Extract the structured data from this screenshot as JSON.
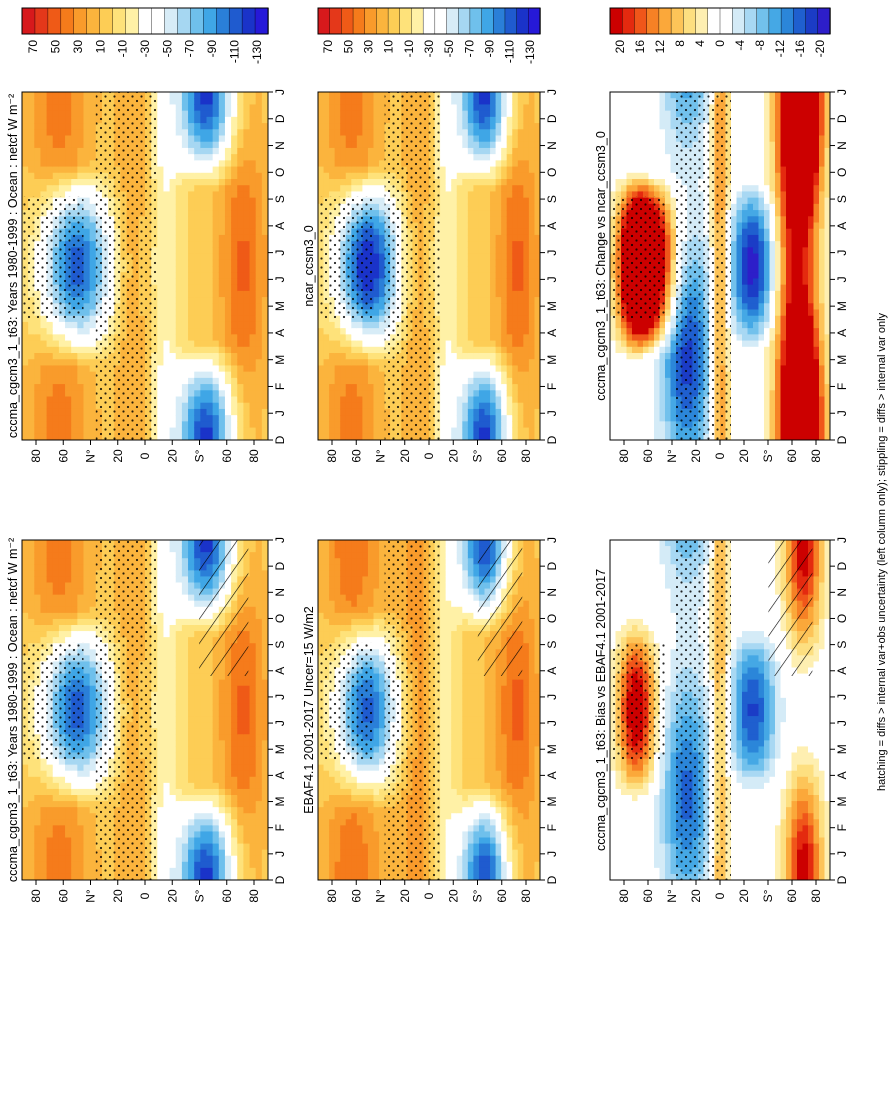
{
  "figure": {
    "footnote": "hatching = diffs > internal var+obs uncertainty (left column only); stippling = diffs > internal var only",
    "month_labels": [
      "D",
      "J",
      "F",
      "M",
      "A",
      "M",
      "J",
      "J",
      "A",
      "S",
      "O",
      "N",
      "D",
      "J"
    ],
    "lat_labels": [
      "80",
      "60",
      "N°",
      "20",
      "0",
      "20",
      "S°",
      "60",
      "80"
    ],
    "colors": {
      "abs_scale": [
        "#d7191c",
        "#e4381a",
        "#ef5a17",
        "#f57b1b",
        "#f99b2b",
        "#fbb43d",
        "#fdcd55",
        "#fee27a",
        "#fff1a6",
        "#ffffff",
        "#ffffff",
        "#d7ecf7",
        "#a6d7f2",
        "#6fc0ec",
        "#3fa6e6",
        "#2a7fd8",
        "#1f5bcf",
        "#1a33c9",
        "#2619d8"
      ],
      "diff_scale": [
        "#cc0000",
        "#e42a0f",
        "#f0561a",
        "#f68125",
        "#fba83a",
        "#fdc458",
        "#fddf80",
        "#feefb1",
        "#ffffff",
        "#ffffff",
        "#d4ebf7",
        "#a8d8f3",
        "#72c1ec",
        "#45a8e5",
        "#2b86d9",
        "#1f5fcf",
        "#1b3cc6",
        "#2d1ec9"
      ]
    }
  },
  "panels": [
    {
      "title": "cccma_cgcm3_1_t63: Years 1980-1999 : Ocean : netcf W m⁻²",
      "scale": "abs",
      "hatch": true
    },
    {
      "title": "cccma_cgcm3_1_t63: Years 1980-1999 : Ocean : netcf W m⁻²",
      "scale": "abs",
      "hatch": false
    },
    {
      "title": "EBAF4.1 2001-2017 Uncer=15 W/m2",
      "scale": "abs",
      "hatch": true
    },
    {
      "title": "ncar_ccsm3_0",
      "scale": "abs",
      "hatch": false
    },
    {
      "title": "cccma_cgcm3_1_t63: Bias vs EBAF4.1 2001-2017",
      "scale": "diff",
      "hatch": true
    },
    {
      "title": "cccma_cgcm3_1_t63: Change vs ncar_ccsm3_0",
      "scale": "diff",
      "hatch": false
    }
  ],
  "colorbars": {
    "abs_ticks": [
      "70",
      "50",
      "30",
      "10",
      "-10",
      "-30",
      "-50",
      "-70",
      "-90",
      "-110",
      "-130"
    ],
    "diff_ticks": [
      "20",
      "16",
      "12",
      "8",
      "4",
      "0",
      "-4",
      "-8",
      "-12",
      "-16",
      "-20"
    ]
  },
  "chart_data": [
    {
      "type": "heatmap",
      "title": "cccma_cgcm3_1_t63: Years 1980-1999 : Ocean : netcf W m⁻²",
      "x": [
        "D",
        "J",
        "F",
        "M",
        "A",
        "M",
        "J",
        "J",
        "A",
        "S",
        "O",
        "N",
        "D",
        "J"
      ],
      "y": [
        "80",
        "60",
        "N",
        "20",
        "0",
        "20",
        "S",
        "60",
        "80"
      ],
      "value_range": [
        -130,
        70
      ],
      "note": "zonal-mean net cloud forcing over ocean; negative (blue) in mid-latitude summer hemispheres, positive (orange) near 60 deg and tropics"
    },
    {
      "type": "heatmap",
      "title": "cccma_cgcm3_1_t63: Years 1980-1999 : Ocean : netcf W m⁻²",
      "x": [
        "D",
        "J",
        "F",
        "M",
        "A",
        "M",
        "J",
        "J",
        "A",
        "S",
        "O",
        "N",
        "D",
        "J"
      ],
      "y": [
        "80",
        "60",
        "N",
        "20",
        "0",
        "20",
        "S",
        "60",
        "80"
      ],
      "value_range": [
        -130,
        70
      ]
    },
    {
      "type": "heatmap",
      "title": "EBAF4.1 2001-2017 Uncer=15 W/m2",
      "x": [
        "D",
        "J",
        "F",
        "M",
        "A",
        "M",
        "J",
        "J",
        "A",
        "S",
        "O",
        "N",
        "D",
        "J"
      ],
      "y": [
        "80",
        "60",
        "N",
        "20",
        "0",
        "20",
        "S",
        "60",
        "80"
      ],
      "value_range": [
        -130,
        70
      ]
    },
    {
      "type": "heatmap",
      "title": "ncar_ccsm3_0",
      "x": [
        "D",
        "J",
        "F",
        "M",
        "A",
        "M",
        "J",
        "J",
        "A",
        "S",
        "O",
        "N",
        "D",
        "J"
      ],
      "y": [
        "80",
        "60",
        "N",
        "20",
        "0",
        "20",
        "S",
        "60",
        "80"
      ],
      "value_range": [
        -130,
        70
      ]
    },
    {
      "type": "heatmap",
      "title": "cccma_cgcm3_1_t63: Bias vs EBAF4.1 2001-2017",
      "x": [
        "D",
        "J",
        "F",
        "M",
        "A",
        "M",
        "J",
        "J",
        "A",
        "S",
        "O",
        "N",
        "D",
        "J"
      ],
      "y": [
        "80",
        "60",
        "N",
        "20",
        "0",
        "20",
        "S",
        "60",
        "80"
      ],
      "value_range": [
        -20,
        20
      ]
    },
    {
      "type": "heatmap",
      "title": "cccma_cgcm3_1_t63: Change vs ncar_ccsm3_0",
      "x": [
        "D",
        "J",
        "F",
        "M",
        "A",
        "M",
        "J",
        "J",
        "A",
        "S",
        "O",
        "N",
        "D",
        "J"
      ],
      "y": [
        "80",
        "60",
        "N",
        "20",
        "0",
        "20",
        "S",
        "60",
        "80"
      ],
      "value_range": [
        -20,
        20
      ]
    }
  ]
}
